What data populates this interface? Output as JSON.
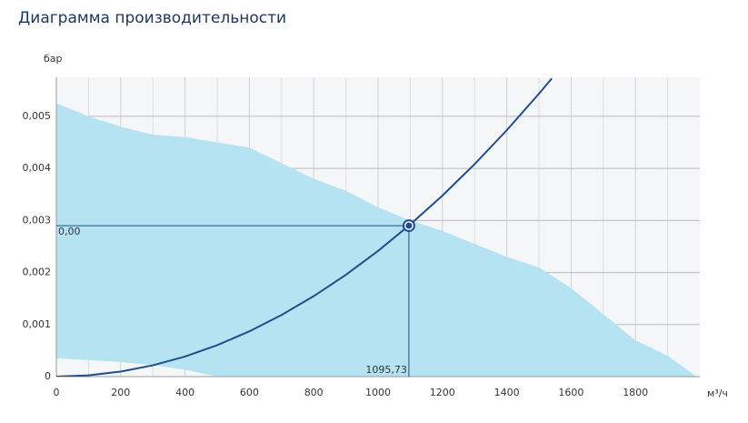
{
  "chart_data": {
    "type": "performance",
    "title": "Диаграмма производительности",
    "y_label": "бар",
    "x_label": "м³/ч",
    "xlim": [
      0,
      2000
    ],
    "ylim": [
      0,
      0.00575
    ],
    "xticks": [
      0,
      200,
      400,
      600,
      800,
      1000,
      1200,
      1400,
      1600,
      1800
    ],
    "x_minor_ticks": [
      100,
      300,
      500,
      700,
      900,
      1100,
      1300,
      1500,
      1700,
      1900
    ],
    "yticks": [
      0,
      {
        "value": 0.001,
        "label": "0,001"
      },
      {
        "value": 0.002,
        "label": "0,002"
      },
      {
        "value": 0.003,
        "label": "0,003"
      },
      {
        "value": 0.004,
        "label": "0,004"
      },
      {
        "value": 0.005,
        "label": "0,005"
      }
    ],
    "grid": true,
    "area": {
      "color": "#b5e3f2",
      "x_upper": [
        0,
        100,
        200,
        300,
        400,
        500,
        600,
        700,
        800,
        900,
        1000,
        1100,
        1200,
        1300,
        1400,
        1500,
        1600,
        1700,
        1800,
        1900,
        1990
      ],
      "upper": [
        0.00525,
        0.005,
        0.0048,
        0.00465,
        0.0046,
        0.0045,
        0.0044,
        0.0041,
        0.0038,
        0.00357,
        0.00325,
        0.003,
        0.0028,
        0.00255,
        0.0023,
        0.0021,
        0.0017,
        0.0012,
        0.0007,
        0.0004,
        0
      ],
      "x_lower": [
        500,
        400,
        300,
        200,
        100,
        0
      ],
      "lower": [
        0,
        0.00013,
        0.00022,
        0.00028,
        0.00032,
        0.00035
      ]
    },
    "curve": {
      "color": "#1f4e8c",
      "x": [
        0,
        100,
        200,
        300,
        400,
        500,
        600,
        700,
        800,
        900,
        1000,
        1100,
        1200,
        1300,
        1400,
        1500,
        1540
      ],
      "values": [
        0,
        2.4e-05,
        9.66e-05,
        0.000217,
        0.000386,
        0.000604,
        0.00087,
        0.001184,
        0.001546,
        0.001957,
        0.002415,
        0.002923,
        0.003478,
        0.004082,
        0.004734,
        0.005435,
        0.005728
      ]
    },
    "operating_point": {
      "x": 1095.73,
      "y": 0.0029,
      "x_label": "1095,73",
      "y_label": "0,00"
    }
  }
}
